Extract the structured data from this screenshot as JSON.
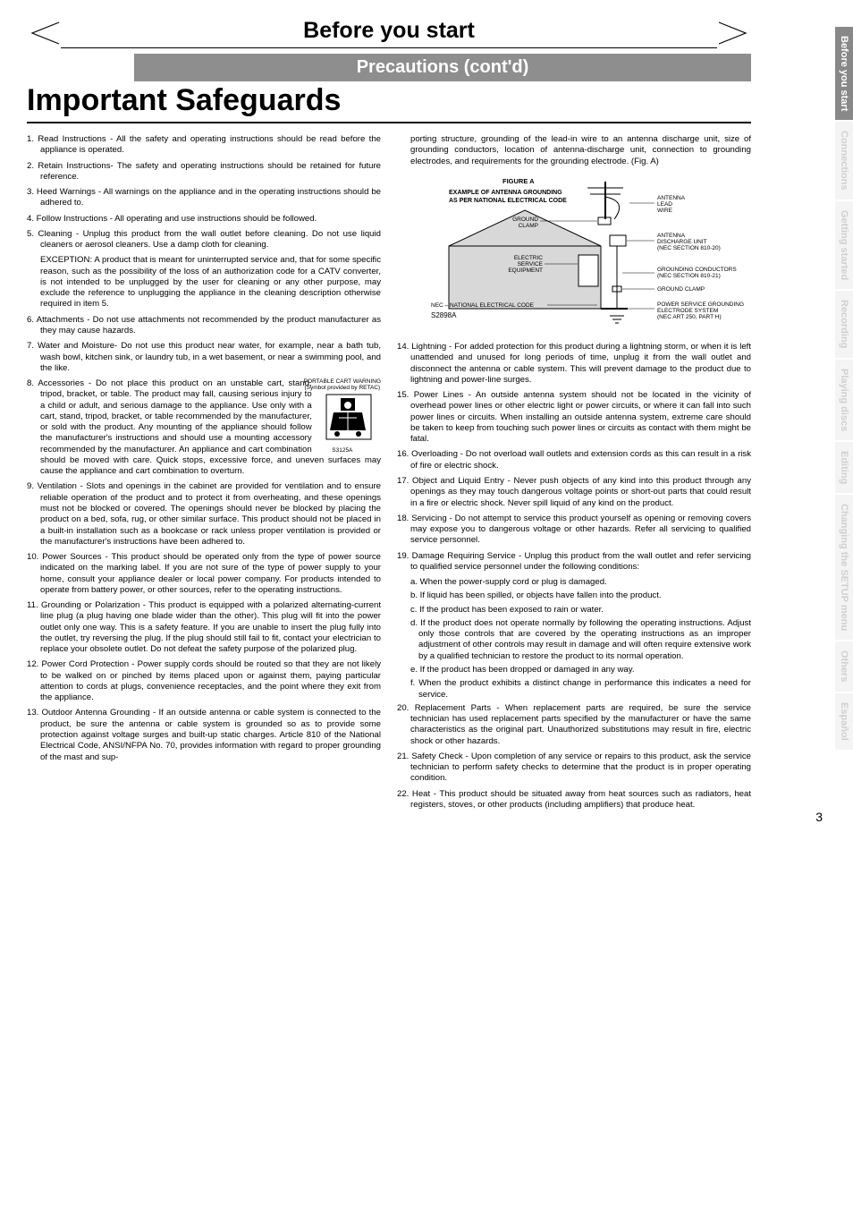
{
  "header": {
    "section": "Before you start",
    "sub": "Precautions (cont'd)",
    "title": "Important Safeguards"
  },
  "leftCol": [
    {
      "n": "1.",
      "t": "Read Instructions - All the safety and operating instructions should be read before the appliance is operated."
    },
    {
      "n": "2.",
      "t": "Retain Instructions- The safety and operating instructions should be retained for future reference."
    },
    {
      "n": "3.",
      "t": "Heed Warnings - All warnings on the appliance and in the operating instructions should be adhered to."
    },
    {
      "n": "4.",
      "t": "Follow Instructions - All operating and use instructions should be followed."
    },
    {
      "n": "5.",
      "t": "Cleaning - Unplug this product from the wall outlet before cleaning. Do not use liquid cleaners or aerosol cleaners. Use a damp cloth for cleaning."
    },
    {
      "inset": true,
      "t": "EXCEPTION: A product that is meant for uninterrupted service and, that for some specific reason, such as the possibility of the loss of an authorization code for a CATV converter, is not intended to be unplugged by the user for cleaning or any other purpose, may exclude the reference to unplugging the appliance in the cleaning description otherwise required in item 5."
    },
    {
      "n": "6.",
      "t": "Attachments - Do not use attachments not recommended by the product manufacturer as they may cause hazards."
    },
    {
      "n": "7.",
      "t": "Water and Moisture- Do not use this product near water, for example, near a bath tub, wash bowl, kitchen sink, or laundry tub, in a wet basement, or near a swimming pool, and the like."
    },
    {
      "n": "8.",
      "t": "Accessories - Do not place this product on an unstable cart, stand, tripod, bracket, or table. The product may fall, causing serious injury to a child or adult, and serious damage to the appliance. Use only with a cart, stand, tripod, bracket, or table recommended by the manufacturer, or sold with the product. Any mounting of the appliance should follow the manufacturer's instructions and should use a mounting accessory recommended by the manufacturer. An appliance and cart combination should be moved with care. Quick stops, excessive force, and uneven surfaces may cause the appliance and cart combination to overturn.",
      "cart": true
    },
    {
      "n": "9.",
      "t": "Ventilation - Slots and openings in the cabinet are provided for ventilation and to ensure reliable operation of the product and to protect it from overheating, and these openings must not be blocked or covered. The openings should never be blocked by placing the product on a bed, sofa, rug, or other similar surface. This product should not be placed in a built-in installation such as a bookcase or rack unless proper ventilation is provided or the manufacturer's instructions have been adhered to."
    },
    {
      "n": "10.",
      "t": "Power Sources - This product should be operated only from the type of power source indicated on the marking label. If you are not sure of the type of power supply to your home, consult your appliance dealer or local power company. For products intended to operate from battery power, or other sources, refer to the operating instructions."
    },
    {
      "n": "11.",
      "t": "Grounding or Polarization - This product is equipped with a polarized alternating-current line plug (a plug having one blade wider than the other). This plug will fit into the power outlet only one way. This is a safety feature. If you are unable to insert the plug fully into the outlet, try reversing the plug. If the plug should still fail to fit, contact your electrician to replace your obsolete outlet. Do not defeat the safety purpose of the polarized plug."
    },
    {
      "n": "12.",
      "t": "Power Cord Protection - Power supply cords should be routed so that they are not likely to be walked on or pinched by items placed upon or against them, paying particular attention to cords at plugs, convenience receptacles, and the point where they exit from the appliance."
    },
    {
      "n": "13.",
      "t": "Outdoor Antenna Grounding - If an outside antenna or cable system is connected to the product, be sure the antenna or cable system is grounded so as to provide some protection against voltage surges and built-up static charges. Article 810 of the National Electrical Code, ANSI/NFPA No. 70, provides information with regard to proper grounding of the mast and sup-"
    }
  ],
  "rightTop": "porting structure, grounding of the lead-in wire to an antenna discharge unit, size of grounding conductors, location of antenna-discharge unit, connection to grounding electrodes, and requirements for the grounding electrode. (Fig. A)",
  "figure": {
    "title": "FIGURE A",
    "subtitle1": "EXAMPLE OF ANTENNA GROUNDING",
    "subtitle2": "AS PER NATIONAL ELECTRICAL CODE",
    "labels": {
      "antennaLead": "ANTENNA LEAD WIRE",
      "groundClamp": "GROUND CLAMP",
      "dischargeUnit": "ANTENNA DISCHARGE UNIT (NEC SECTION 810-20)",
      "electricService": "ELECTRIC SERVICE EQUIPMENT",
      "groundingConductors": "GROUNDING CONDUCTORS (NEC SECTION 810-21)",
      "groundClamp2": "GROUND CLAMP",
      "nec": "NEC – NATIONAL ELECTRICAL CODE",
      "powerService": "POWER SERVICE GROUNDING ELECTRODE SYSTEM (NEC ART 250, PART H)",
      "code": "S2898A"
    }
  },
  "rightCol": [
    {
      "n": "14.",
      "t": "Lightning - For added protection for this product during a lightning storm, or when it is left unattended and unused for long periods of time, unplug it from the wall outlet and disconnect the antenna or cable system. This will prevent damage to the product due to lightning and power-line surges."
    },
    {
      "n": "15.",
      "t": "Power Lines - An outside antenna system should not be located in the vicinity of overhead power lines or other electric light or power circuits, or where it can fall into such power lines or circuits. When installing an outside antenna system, extreme care should be taken to keep from touching such power lines or circuits as contact with them might be fatal."
    },
    {
      "n": "16.",
      "t": "Overloading - Do not overload wall outlets and extension cords as this can result in a risk of fire or electric shock."
    },
    {
      "n": "17.",
      "t": "Object and Liquid Entry - Never push objects of any kind into this product through any openings as they may touch dangerous voltage points or short-out parts that could result in a fire or electric shock. Never spill liquid of any kind on the product."
    },
    {
      "n": "18.",
      "t": "Servicing - Do not attempt to service this product yourself as opening or removing covers may expose you to dangerous voltage or other hazards. Refer all servicing to qualified service personnel."
    },
    {
      "n": "19.",
      "t": "Damage Requiring Service - Unplug this product from the wall outlet and refer servicing to qualified service personnel under the following conditions:"
    },
    {
      "sub": true,
      "n": "a.",
      "t": "When the power-supply cord or plug is damaged."
    },
    {
      "sub": true,
      "n": "b.",
      "t": "If liquid has been spilled, or objects have fallen into the product."
    },
    {
      "sub": true,
      "n": "c.",
      "t": "If the product has been exposed to rain or water."
    },
    {
      "sub": true,
      "n": "d.",
      "t": "If the product does not operate normally by following the operating instructions. Adjust only those controls that are covered by the operating instructions as an improper adjustment of other controls may result in damage and will often require extensive work by a qualified technician to restore the product to its normal operation."
    },
    {
      "sub": true,
      "n": "e.",
      "t": "If the product has been dropped or damaged in any way."
    },
    {
      "sub": true,
      "n": "f.",
      "t": "When the product exhibits a distinct change in performance this indicates a need for service."
    },
    {
      "n": "20.",
      "t": "Replacement Parts - When replacement parts are required, be sure the service technician has used replacement parts specified by the manufacturer or have the same characteristics as the original part. Unauthorized substitutions may result in fire, electric shock or other hazards."
    },
    {
      "n": "21.",
      "t": "Safety Check - Upon completion of any service or repairs to this product, ask the service technician to perform safety checks to determine that the product is in proper operating condition."
    },
    {
      "n": "22.",
      "t": "Heat - This product should be situated away from heat sources such as radiators, heat registers, stoves, or other products (including amplifiers) that produce heat."
    }
  ],
  "cart": {
    "line1": "PORTABLE CART WARNING",
    "line2": "(Symbol provided by RETAC)",
    "code": "S3125A"
  },
  "tabs": [
    {
      "label": "Before you start",
      "active": true
    },
    {
      "label": "Connections",
      "active": false
    },
    {
      "label": "Getting started",
      "active": false
    },
    {
      "label": "Recording",
      "active": false
    },
    {
      "label": "Playing discs",
      "active": false
    },
    {
      "label": "Editing",
      "active": false
    },
    {
      "label": "Changing the SETUP menu",
      "active": false
    },
    {
      "label": "Others",
      "active": false
    },
    {
      "label": "Español",
      "active": false
    }
  ],
  "pageNum": "3"
}
